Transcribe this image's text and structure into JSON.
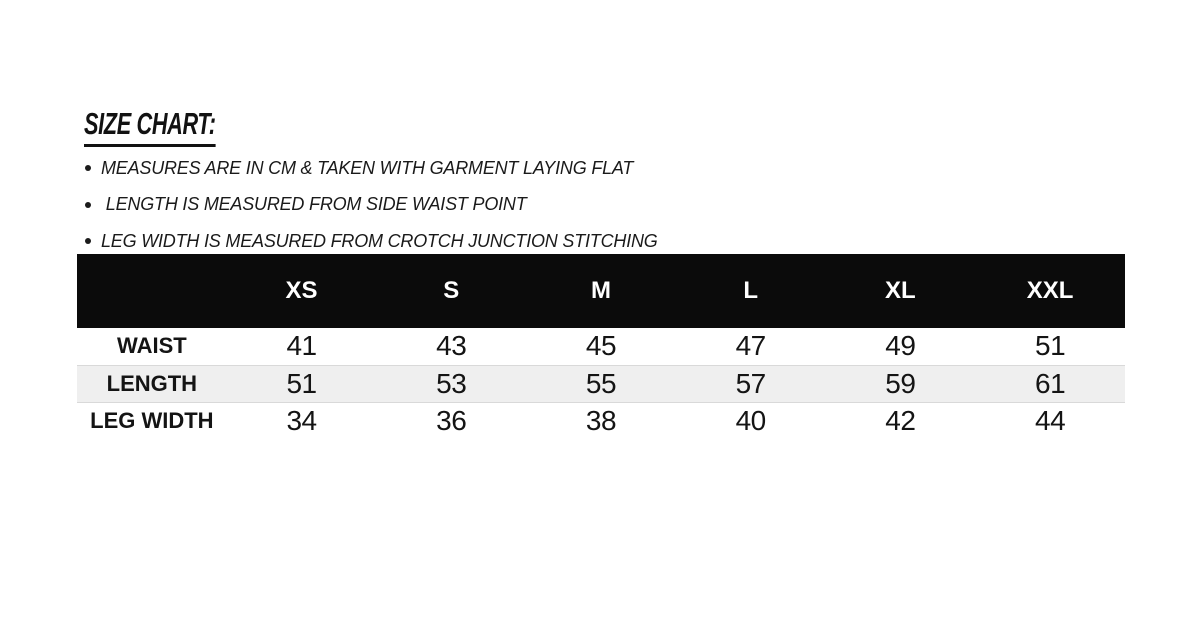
{
  "title": "SIZE CHART:",
  "notes": [
    "MEASURES ARE IN CM & TAKEN WITH GARMENT LAYING FLAT",
    " LENGTH IS MEASURED FROM SIDE WAIST POINT",
    "LEG WIDTH IS MEASURED FROM CROTCH JUNCTION STITCHING"
  ],
  "chart_data": {
    "type": "table",
    "title": "SIZE CHART:",
    "units": "cm",
    "columns": [
      "XS",
      "S",
      "M",
      "L",
      "XL",
      "XXL"
    ],
    "rows": [
      {
        "label": "WAIST",
        "values": [
          41,
          43,
          45,
          47,
          49,
          51
        ]
      },
      {
        "label": "LENGTH",
        "values": [
          51,
          53,
          55,
          57,
          59,
          61
        ]
      },
      {
        "label": "LEG WIDTH",
        "values": [
          34,
          36,
          38,
          40,
          42,
          44
        ]
      }
    ],
    "layout": {
      "header_bg": "#0b0b0b",
      "header_text_color": "#ffffff",
      "striped_row_bg": "#efefef",
      "striped_row_border": "#d9d9d9",
      "text_color": "#141414",
      "background": "#ffffff",
      "first_column_is_row_labels": true
    }
  }
}
